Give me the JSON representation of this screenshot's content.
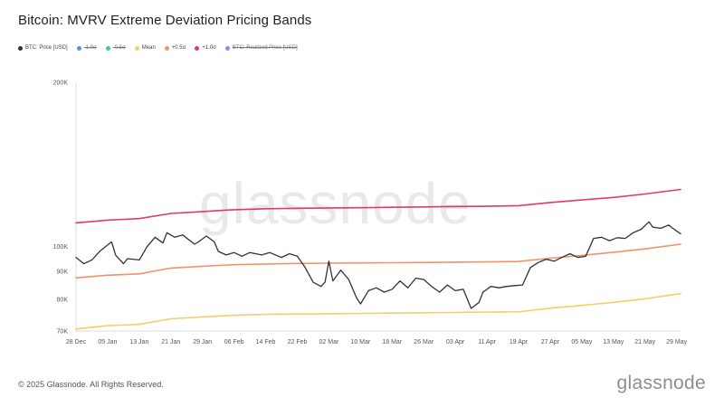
{
  "header": {
    "title": "Bitcoin: MVRV Extreme Deviation Pricing Bands"
  },
  "legend": [
    {
      "label": "BTC: Price [USD]",
      "color": "#333333",
      "active": true
    },
    {
      "label": "-1.0σ",
      "color": "#5b8def",
      "active": false
    },
    {
      "label": "-0.5σ",
      "color": "#3fc9a0",
      "active": false
    },
    {
      "label": "Mean",
      "color": "#f3cf6a",
      "active": true
    },
    {
      "label": "+0.5σ",
      "color": "#f2926a",
      "active": true
    },
    {
      "label": "+1.0σ",
      "color": "#e3386a",
      "active": true
    },
    {
      "label": "BTC: Realized Price [USD]",
      "color": "#9a86e8",
      "active": false
    }
  ],
  "watermark": "glassnode",
  "footer": {
    "copyright": "© 2025 Glassnode. All Rights Reserved.",
    "brand": "glassnode"
  },
  "chart_data": {
    "type": "line",
    "yscale": "log",
    "ylim": [
      70000,
      200000
    ],
    "xlim": [
      "2024-12-28",
      "2025-05-30"
    ],
    "grid": false,
    "legend_position": "top-left",
    "y_ticks": [
      {
        "value": 70000,
        "label": "70K"
      },
      {
        "value": 80000,
        "label": "80K"
      },
      {
        "value": 90000,
        "label": "90K"
      },
      {
        "value": 100000,
        "label": "100K"
      },
      {
        "value": 200000,
        "label": "200K"
      }
    ],
    "x_ticks": [
      {
        "date": "2024-12-28",
        "label": "28 Dec"
      },
      {
        "date": "2025-01-05",
        "label": "05 Jan"
      },
      {
        "date": "2025-01-13",
        "label": "13 Jan"
      },
      {
        "date": "2025-01-21",
        "label": "21 Jan"
      },
      {
        "date": "2025-01-29",
        "label": "29 Jan"
      },
      {
        "date": "2025-02-06",
        "label": "06 Feb"
      },
      {
        "date": "2025-02-14",
        "label": "14 Feb"
      },
      {
        "date": "2025-02-22",
        "label": "22 Feb"
      },
      {
        "date": "2025-03-02",
        "label": "02 Mar"
      },
      {
        "date": "2025-03-10",
        "label": "10 Mar"
      },
      {
        "date": "2025-03-18",
        "label": "18 Mar"
      },
      {
        "date": "2025-03-26",
        "label": "26 Mar"
      },
      {
        "date": "2025-04-03",
        "label": "03 Apr"
      },
      {
        "date": "2025-04-11",
        "label": "11 Apr"
      },
      {
        "date": "2025-04-19",
        "label": "19 Apr"
      },
      {
        "date": "2025-04-27",
        "label": "27 Apr"
      },
      {
        "date": "2025-05-05",
        "label": "05 May"
      },
      {
        "date": "2025-05-13",
        "label": "13 May"
      },
      {
        "date": "2025-05-21",
        "label": "21 May"
      },
      {
        "date": "2025-05-29",
        "label": "29 May"
      }
    ],
    "series": [
      {
        "name": "+1.0σ",
        "color": "#e3386a",
        "width": 1.6,
        "points": [
          [
            "2024-12-28",
            110500
          ],
          [
            "2025-01-05",
            111800
          ],
          [
            "2025-01-13",
            112500
          ],
          [
            "2025-01-21",
            115000
          ],
          [
            "2025-01-29",
            115900
          ],
          [
            "2025-02-06",
            116800
          ],
          [
            "2025-02-14",
            117300
          ],
          [
            "2025-02-22",
            117500
          ],
          [
            "2025-03-02",
            117700
          ],
          [
            "2025-03-10",
            117800
          ],
          [
            "2025-03-18",
            118000
          ],
          [
            "2025-03-26",
            118200
          ],
          [
            "2025-04-03",
            118400
          ],
          [
            "2025-04-11",
            118500
          ],
          [
            "2025-04-19",
            118800
          ],
          [
            "2025-04-27",
            120400
          ],
          [
            "2025-05-05",
            121700
          ],
          [
            "2025-05-13",
            123000
          ],
          [
            "2025-05-21",
            124800
          ],
          [
            "2025-05-30",
            127200
          ]
        ]
      },
      {
        "name": "+0.5σ",
        "color": "#f2926a",
        "width": 1.6,
        "points": [
          [
            "2024-12-28",
            87600
          ],
          [
            "2025-01-05",
            88600
          ],
          [
            "2025-01-13",
            89100
          ],
          [
            "2025-01-21",
            91300
          ],
          [
            "2025-01-29",
            92000
          ],
          [
            "2025-02-06",
            92600
          ],
          [
            "2025-02-14",
            92900
          ],
          [
            "2025-02-22",
            93100
          ],
          [
            "2025-03-02",
            93200
          ],
          [
            "2025-03-10",
            93300
          ],
          [
            "2025-03-18",
            93400
          ],
          [
            "2025-03-26",
            93500
          ],
          [
            "2025-04-03",
            93600
          ],
          [
            "2025-04-11",
            93700
          ],
          [
            "2025-04-19",
            93900
          ],
          [
            "2025-04-27",
            95200
          ],
          [
            "2025-05-05",
            96300
          ],
          [
            "2025-05-13",
            97600
          ],
          [
            "2025-05-21",
            99000
          ],
          [
            "2025-05-30",
            101000
          ]
        ]
      },
      {
        "name": "Mean",
        "color": "#f3cf6a",
        "width": 1.6,
        "points": [
          [
            "2024-12-28",
            70600
          ],
          [
            "2025-01-05",
            71600
          ],
          [
            "2025-01-13",
            72000
          ],
          [
            "2025-01-21",
            73700
          ],
          [
            "2025-01-29",
            74300
          ],
          [
            "2025-02-06",
            74800
          ],
          [
            "2025-02-14",
            75100
          ],
          [
            "2025-02-22",
            75200
          ],
          [
            "2025-03-02",
            75300
          ],
          [
            "2025-03-10",
            75400
          ],
          [
            "2025-03-18",
            75500
          ],
          [
            "2025-03-26",
            75600
          ],
          [
            "2025-04-03",
            75700
          ],
          [
            "2025-04-11",
            75800
          ],
          [
            "2025-04-19",
            75900
          ],
          [
            "2025-04-27",
            77100
          ],
          [
            "2025-05-05",
            78000
          ],
          [
            "2025-05-13",
            79000
          ],
          [
            "2025-05-21",
            80200
          ],
          [
            "2025-05-30",
            82000
          ]
        ]
      },
      {
        "name": "BTC: Price [USD]",
        "color": "#333333",
        "width": 1.3,
        "points": [
          [
            "2024-12-28",
            95500
          ],
          [
            "2024-12-30",
            93000
          ],
          [
            "2025-01-01",
            94500
          ],
          [
            "2025-01-03",
            98000
          ],
          [
            "2025-01-06",
            102000
          ],
          [
            "2025-01-07",
            96500
          ],
          [
            "2025-01-09",
            93000
          ],
          [
            "2025-01-10",
            95000
          ],
          [
            "2025-01-13",
            94500
          ],
          [
            "2025-01-15",
            100000
          ],
          [
            "2025-01-17",
            104000
          ],
          [
            "2025-01-19",
            101500
          ],
          [
            "2025-01-20",
            106000
          ],
          [
            "2025-01-22",
            104000
          ],
          [
            "2025-01-24",
            105000
          ],
          [
            "2025-01-27",
            101000
          ],
          [
            "2025-01-28",
            102000
          ],
          [
            "2025-01-30",
            104500
          ],
          [
            "2025-02-01",
            102000
          ],
          [
            "2025-02-02",
            98000
          ],
          [
            "2025-02-04",
            96500
          ],
          [
            "2025-02-06",
            97500
          ],
          [
            "2025-02-08",
            96000
          ],
          [
            "2025-02-10",
            97500
          ],
          [
            "2025-02-13",
            96500
          ],
          [
            "2025-02-15",
            97500
          ],
          [
            "2025-02-18",
            95500
          ],
          [
            "2025-02-20",
            97000
          ],
          [
            "2025-02-22",
            96000
          ],
          [
            "2025-02-24",
            91500
          ],
          [
            "2025-02-26",
            86000
          ],
          [
            "2025-02-28",
            84500
          ],
          [
            "2025-03-01",
            86000
          ],
          [
            "2025-03-02",
            94000
          ],
          [
            "2025-03-03",
            86500
          ],
          [
            "2025-03-05",
            90500
          ],
          [
            "2025-03-07",
            87000
          ],
          [
            "2025-03-09",
            80500
          ],
          [
            "2025-03-10",
            78500
          ],
          [
            "2025-03-12",
            83000
          ],
          [
            "2025-03-14",
            84000
          ],
          [
            "2025-03-16",
            82500
          ],
          [
            "2025-03-18",
            83500
          ],
          [
            "2025-03-20",
            86500
          ],
          [
            "2025-03-22",
            84000
          ],
          [
            "2025-03-24",
            87500
          ],
          [
            "2025-03-26",
            87000
          ],
          [
            "2025-03-28",
            84500
          ],
          [
            "2025-03-30",
            82500
          ],
          [
            "2025-04-01",
            85000
          ],
          [
            "2025-04-03",
            83000
          ],
          [
            "2025-04-05",
            83500
          ],
          [
            "2025-04-07",
            77000
          ],
          [
            "2025-04-09",
            79000
          ],
          [
            "2025-04-10",
            82500
          ],
          [
            "2025-04-12",
            84500
          ],
          [
            "2025-04-14",
            84000
          ],
          [
            "2025-04-16",
            84500
          ],
          [
            "2025-04-18",
            84800
          ],
          [
            "2025-04-20",
            85000
          ],
          [
            "2025-04-22",
            91500
          ],
          [
            "2025-04-24",
            93500
          ],
          [
            "2025-04-26",
            94800
          ],
          [
            "2025-04-28",
            94000
          ],
          [
            "2025-04-30",
            95500
          ],
          [
            "2025-05-02",
            97000
          ],
          [
            "2025-05-04",
            95500
          ],
          [
            "2025-05-06",
            96000
          ],
          [
            "2025-05-08",
            103500
          ],
          [
            "2025-05-10",
            104000
          ],
          [
            "2025-05-12",
            102500
          ],
          [
            "2025-05-14",
            103800
          ],
          [
            "2025-05-16",
            103500
          ],
          [
            "2025-05-18",
            106000
          ],
          [
            "2025-05-20",
            107500
          ],
          [
            "2025-05-22",
            111000
          ],
          [
            "2025-05-23",
            108500
          ],
          [
            "2025-05-25",
            108000
          ],
          [
            "2025-05-27",
            109500
          ],
          [
            "2025-05-28",
            108000
          ],
          [
            "2025-05-30",
            105500
          ]
        ]
      }
    ]
  }
}
